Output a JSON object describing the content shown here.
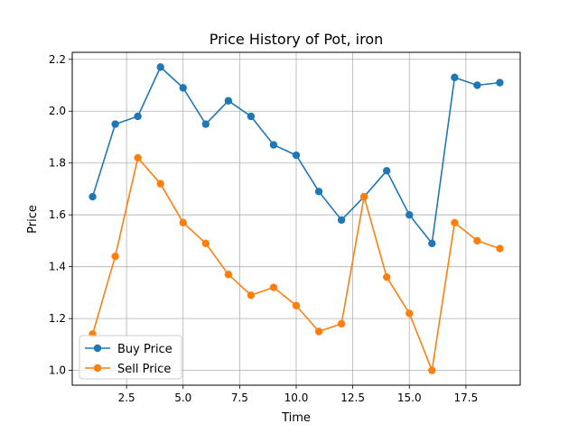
{
  "chart_data": {
    "type": "line",
    "title": "Price History of Pot, iron",
    "xlabel": "Time",
    "ylabel": "Price",
    "x": [
      1,
      2,
      3,
      4,
      5,
      6,
      7,
      8,
      9,
      10,
      11,
      12,
      13,
      14,
      15,
      16,
      17,
      18,
      19
    ],
    "series": [
      {
        "name": "Buy Price",
        "color": "#1f77b4",
        "values": [
          1.67,
          1.95,
          1.98,
          2.17,
          2.09,
          1.95,
          2.04,
          1.98,
          1.87,
          1.83,
          1.69,
          1.58,
          1.67,
          1.77,
          1.6,
          1.49,
          2.13,
          2.1,
          2.11
        ]
      },
      {
        "name": "Sell Price",
        "color": "#ff7f0e",
        "values": [
          1.14,
          1.44,
          1.82,
          1.72,
          1.57,
          1.49,
          1.37,
          1.29,
          1.32,
          1.25,
          1.15,
          1.18,
          1.67,
          1.36,
          1.22,
          1.0,
          1.57,
          1.5,
          1.47
        ]
      }
    ],
    "xlim": [
      0.1,
      19.9
    ],
    "ylim": [
      0.943,
      2.227
    ],
    "xticks": [
      2.5,
      5.0,
      7.5,
      10.0,
      12.5,
      15.0,
      17.5
    ],
    "xtick_labels": [
      "2.5",
      "5.0",
      "7.5",
      "10.0",
      "12.5",
      "15.0",
      "17.5"
    ],
    "yticks": [
      1.0,
      1.2,
      1.4,
      1.6,
      1.8,
      2.0,
      2.2
    ],
    "ytick_labels": [
      "1.0",
      "1.2",
      "1.4",
      "1.6",
      "1.8",
      "2.0",
      "2.2"
    ],
    "grid": true,
    "legend_position": "lower-left"
  }
}
